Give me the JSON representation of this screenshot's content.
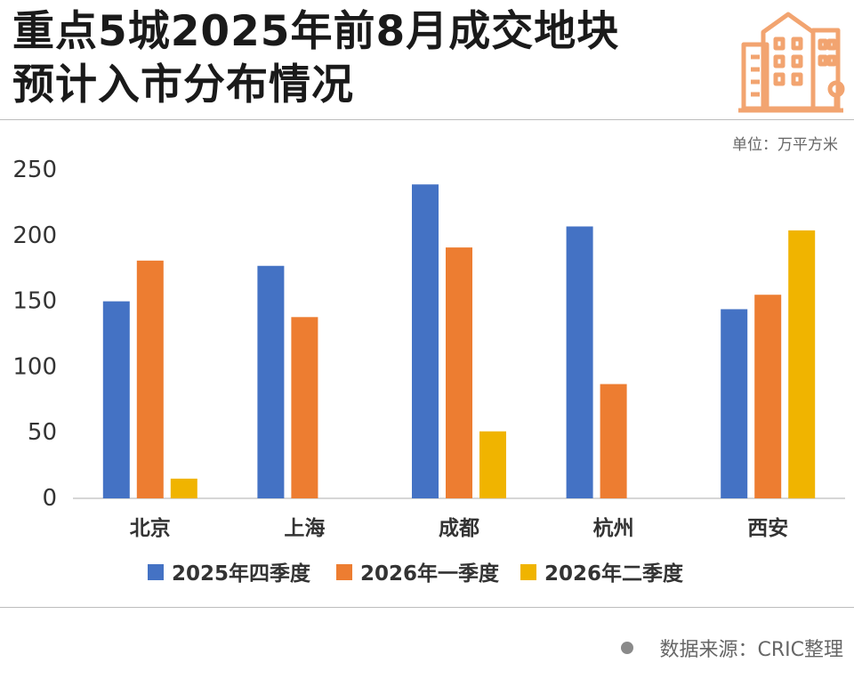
{
  "title_line1": "重点5城2025年前8月成交地块",
  "title_line2": "预计入市分布情况",
  "unit_label": "单位：万平方米",
  "source_label": "数据来源：CRIC整理",
  "chart_data": {
    "type": "bar",
    "categories": [
      "北京",
      "上海",
      "成都",
      "杭州",
      "西安"
    ],
    "series": [
      {
        "name": "2025年四季度",
        "color": "#4472C4",
        "values": [
          150,
          177,
          239,
          207,
          144
        ]
      },
      {
        "name": "2026年一季度",
        "color": "#ED7D31",
        "values": [
          181,
          138,
          191,
          87,
          155
        ]
      },
      {
        "name": "2026年二季度",
        "color": "#F0B400",
        "values": [
          15,
          null,
          51,
          null,
          204
        ]
      }
    ],
    "ylim": [
      0,
      250
    ],
    "yticks": [
      0,
      50,
      100,
      150,
      200,
      250
    ],
    "legend_position": "bottom",
    "grid": false
  }
}
